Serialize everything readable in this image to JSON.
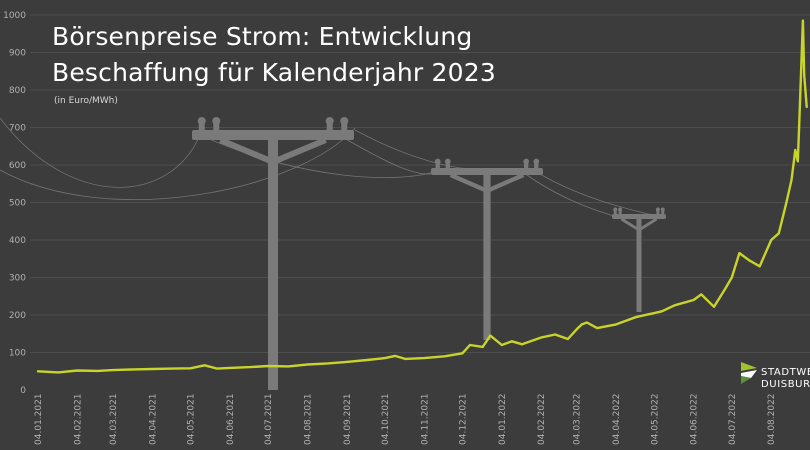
{
  "chart_data": {
    "type": "line",
    "title": "Börsenpreise Strom: Entwicklung",
    "subtitle": "Beschaffung für Kalenderjahr 2023",
    "unit_label": "(in Euro/MWh)",
    "xlabel": "",
    "ylabel": "",
    "ylim": [
      0,
      1000
    ],
    "yticks": [
      0,
      100,
      200,
      300,
      400,
      500,
      600,
      700,
      800,
      900,
      1000
    ],
    "xlim": [
      "2021-01-04",
      "2022-09-02"
    ],
    "xtick_labels": [
      "04.01.2021",
      "04.02.2021",
      "04.03.2021",
      "04.04.2021",
      "04.05.2021",
      "04.06.2021",
      "04.07.2021",
      "04.08.2021",
      "04.09.2021",
      "04.10.2021",
      "04.11.2021",
      "04.12.2021",
      "04.01.2022",
      "04.02.2022",
      "04.03.2022",
      "04.04.2022",
      "04.05.2022",
      "04.06.2022",
      "04.07.2022",
      "04.08.2022"
    ],
    "grid": true,
    "line_color": "#c8d42a",
    "series": [
      {
        "x": [
          "2021-01-04",
          "2021-01-20",
          "2021-02-04",
          "2021-02-20",
          "2021-03-04",
          "2021-03-20",
          "2021-04-04",
          "2021-04-20",
          "2021-05-04",
          "2021-05-15",
          "2021-05-25",
          "2021-06-04",
          "2021-06-20",
          "2021-07-04",
          "2021-07-20",
          "2021-08-04",
          "2021-08-20",
          "2021-09-04",
          "2021-09-20",
          "2021-10-04",
          "2021-10-12",
          "2021-10-20",
          "2021-11-04",
          "2021-11-20",
          "2021-12-04",
          "2021-12-10",
          "2021-12-20",
          "2021-12-26",
          "2022-01-04",
          "2022-01-12",
          "2022-01-20",
          "2022-02-04",
          "2022-02-15",
          "2022-02-25",
          "2022-03-04",
          "2022-03-08",
          "2022-03-12",
          "2022-03-20",
          "2022-04-04",
          "2022-04-20",
          "2022-05-04",
          "2022-05-10",
          "2022-05-20",
          "2022-06-04",
          "2022-06-10",
          "2022-06-20",
          "2022-06-28",
          "2022-07-04",
          "2022-07-10",
          "2022-07-18",
          "2022-07-26",
          "2022-08-04",
          "2022-08-10",
          "2022-08-16",
          "2022-08-20",
          "2022-08-23",
          "2022-08-25",
          "2022-08-26",
          "2022-08-29",
          "2022-08-30",
          "2022-09-01"
        ],
        "y": [
          50,
          47,
          52,
          51,
          53,
          55,
          56,
          57,
          58,
          66,
          57,
          59,
          61,
          64,
          63,
          68,
          71,
          75,
          80,
          85,
          91,
          83,
          85,
          90,
          98,
          120,
          115,
          145,
          120,
          130,
          122,
          140,
          148,
          136,
          162,
          175,
          180,
          165,
          175,
          195,
          205,
          210,
          226,
          240,
          255,
          222,
          265,
          300,
          365,
          345,
          330,
          400,
          418,
          500,
          560,
          640,
          610,
          700,
          985,
          840,
          755
        ]
      }
    ]
  },
  "logo": {
    "line1": "STADTWERKE",
    "line2": "DUISBURG",
    "colors": [
      "#9fc32a",
      "#ffffff",
      "#5a8f3c"
    ]
  },
  "colors": {
    "background": "#3c3c3c",
    "grid": "#4e4e4e",
    "axis_text": "#b0b0b0",
    "pylon": "#7a7a7a"
  }
}
